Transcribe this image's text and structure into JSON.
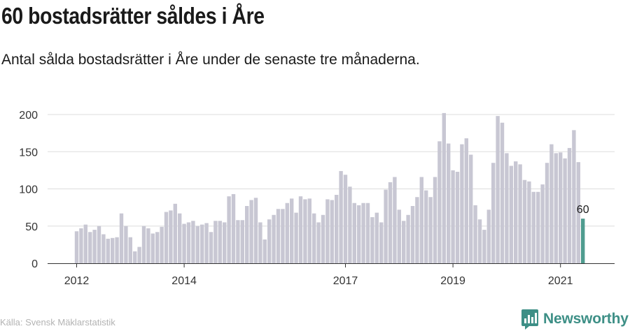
{
  "title": "60 bostadsrätter såldes i Åre",
  "subtitle": "Antal sålda bostadsrätter i Åre under de senaste tre månaderna.",
  "source": "Källa: Svensk Mäklarstatistik",
  "brand": {
    "name": "Newsworthy",
    "icon": "newsworthy-logo-icon"
  },
  "colors": {
    "bar": "#c8c7d3",
    "highlight": "#4f9c8f",
    "grid": "#dddddd",
    "axis": "#333333",
    "brand": "#3d8f86"
  },
  "chart_data": {
    "type": "bar",
    "title": "60 bostadsrätter såldes i Åre",
    "subtitle": "Antal sålda bostadsrätter i Åre under de senaste tre månaderna.",
    "xlabel": "",
    "ylabel": "",
    "ylim": [
      0,
      200
    ],
    "yticks": [
      0,
      50,
      100,
      150,
      200
    ],
    "grid": true,
    "x_start": "2012-01",
    "x_ticks": [
      {
        "label": "2012",
        "x": "2012-01"
      },
      {
        "label": "2014",
        "x": "2014-01"
      },
      {
        "label": "2017",
        "x": "2017-01"
      },
      {
        "label": "2019",
        "x": "2019-01"
      },
      {
        "label": "2021",
        "x": "2021-01"
      }
    ],
    "values": [
      43,
      47,
      52,
      42,
      45,
      50,
      39,
      33,
      34,
      35,
      67,
      50,
      35,
      16,
      22,
      50,
      47,
      40,
      42,
      49,
      69,
      71,
      80,
      67,
      53,
      55,
      57,
      50,
      52,
      54,
      42,
      57,
      57,
      55,
      90,
      93,
      58,
      58,
      77,
      85,
      88,
      55,
      32,
      59,
      65,
      73,
      73,
      81,
      87,
      68,
      90,
      86,
      87,
      67,
      55,
      65,
      86,
      85,
      92,
      124,
      119,
      103,
      81,
      78,
      81,
      81,
      62,
      68,
      55,
      99,
      109,
      116,
      72,
      57,
      65,
      77,
      89,
      116,
      98,
      89,
      116,
      164,
      202,
      161,
      125,
      123,
      160,
      168,
      146,
      78,
      59,
      45,
      72,
      135,
      198,
      189,
      148,
      131,
      137,
      133,
      112,
      110,
      96,
      96,
      106,
      135,
      160,
      148,
      149,
      141,
      155,
      179,
      136,
      60
    ],
    "highlight_last": true,
    "data_labels": [
      {
        "index": 113,
        "text": "60"
      }
    ]
  }
}
